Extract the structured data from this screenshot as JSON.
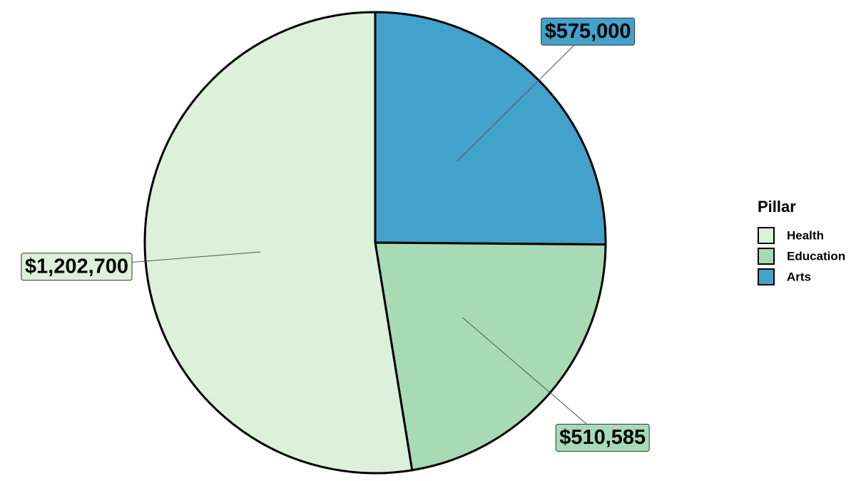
{
  "chart_data": {
    "type": "pie",
    "legend_title": "Pillar",
    "categories": [
      "Health",
      "Education",
      "Arts"
    ],
    "values": [
      1202700,
      510585,
      575000
    ],
    "value_labels": [
      "$1,202,700",
      "$510,585",
      "$575,000"
    ],
    "colors": [
      "#ddf1da",
      "#a8dbb5",
      "#43a2ca"
    ],
    "legend": "right"
  }
}
